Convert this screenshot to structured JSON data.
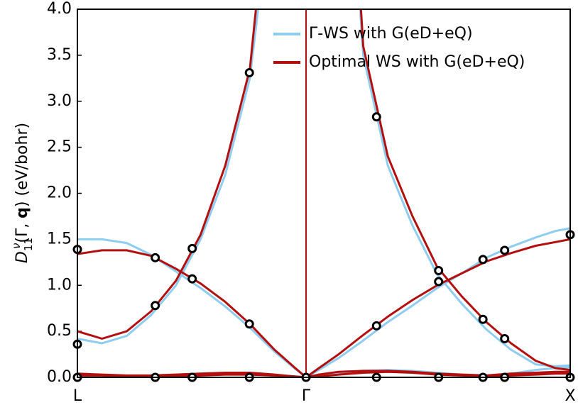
{
  "chart_data": {
    "type": "line",
    "y_label": {
      "symbol": "D",
      "subscript": "11",
      "superscript": "ν",
      "open": "(Γ, ",
      "bold": "q",
      "close": ") (eV/bohr)"
    },
    "x": [
      0,
      0.05,
      0.1,
      0.15,
      0.2,
      0.25,
      0.3,
      0.35,
      0.4,
      0.44,
      0.464,
      0.49,
      0.53,
      0.58,
      0.63,
      0.68,
      0.73,
      0.78,
      0.83,
      0.88,
      0.93,
      0.97,
      1.0
    ],
    "xlim": [
      0,
      1
    ],
    "xticks": [
      {
        "value": 0,
        "label": "L"
      },
      {
        "value": 0.464,
        "label": "Γ"
      },
      {
        "value": 1,
        "label": "X"
      }
    ],
    "ylim": [
      0,
      4
    ],
    "yticks": [
      {
        "value": 0,
        "label": "0.0"
      },
      0.5,
      {
        "value": 1,
        "label": "1.0"
      },
      1.5,
      {
        "value": 2,
        "label": "2.0"
      },
      2.5,
      {
        "value": 3,
        "label": "3.0"
      },
      3.5,
      {
        "value": 4,
        "label": "4.0"
      }
    ],
    "legend": "upper right",
    "series": [
      {
        "name": "Γ-WS with G(eD+eQ)",
        "color": "#8ecdf0",
        "branches": [
          [
            0.42,
            0.37,
            0.45,
            0.68,
            1.0,
            1.5,
            2.2,
            3.25,
            5.5,
            14,
            null,
            28,
            7.5,
            3.5,
            2.3,
            1.65,
            1.12,
            0.8,
            0.52,
            0.3,
            0.14,
            0.12,
            0.13
          ],
          [
            1.5,
            1.5,
            1.46,
            1.33,
            1.15,
            0.97,
            0.77,
            0.54,
            0.28,
            0.1,
            0,
            0.08,
            0.21,
            0.4,
            0.6,
            0.78,
            0.97,
            1.13,
            1.3,
            1.42,
            1.52,
            1.59,
            1.62
          ],
          [
            0.02,
            0.02,
            0.01,
            0.02,
            0.03,
            0.04,
            0.04,
            0.04,
            0.02,
            0.01,
            0,
            0.02,
            0.05,
            0.07,
            0.08,
            0.07,
            0.05,
            0.03,
            0.02,
            0.04,
            0.08,
            0.1,
            0.11
          ]
        ]
      },
      {
        "name": "Optimal WS with G(eD+eQ)",
        "color": "#b30f0f",
        "branches": [
          [
            0.5,
            0.42,
            0.5,
            0.72,
            1.05,
            1.55,
            2.3,
            3.35,
            6,
            15,
            null,
            30,
            8,
            3.6,
            2.4,
            1.75,
            1.2,
            0.88,
            0.6,
            0.37,
            0.18,
            0.1,
            0.08
          ],
          [
            1.34,
            1.38,
            1.38,
            1.32,
            1.18,
            1.02,
            0.82,
            0.58,
            0.3,
            0.11,
            0,
            0.1,
            0.25,
            0.46,
            0.66,
            0.84,
            1.0,
            1.13,
            1.26,
            1.35,
            1.43,
            1.47,
            1.5
          ],
          [
            0.04,
            0.03,
            0.02,
            0.02,
            0.03,
            0.04,
            0.05,
            0.05,
            0.03,
            0.01,
            0,
            0.03,
            0.06,
            0.07,
            0.07,
            0.06,
            0.04,
            0.03,
            0.02,
            0.04,
            0.05,
            0.06,
            0.06
          ],
          [
            0.02,
            0.02,
            0.01,
            0.01,
            0.01,
            0.02,
            0.03,
            0.03,
            0.02,
            0.01,
            0,
            0.01,
            0.03,
            0.05,
            0.06,
            0.05,
            0.03,
            0.02,
            0.01,
            0.02,
            0.03,
            0.04,
            0.04
          ]
        ]
      }
    ],
    "points": {
      "x": [
        0,
        0,
        0,
        0.158,
        0.158,
        0.158,
        0.233,
        0.233,
        0.233,
        0.349,
        0.349,
        0.349,
        0.464,
        0.607,
        0.607,
        0.607,
        0.733,
        0.733,
        0.733,
        0.823,
        0.823,
        0.823,
        0.867,
        0.867,
        0.867,
        1,
        1
      ],
      "values": [
        1.39,
        0.36,
        0,
        1.3,
        0.78,
        0,
        1.4,
        1.07,
        0,
        3.31,
        0.58,
        0,
        0,
        2.83,
        0.56,
        0,
        1.16,
        1.04,
        0,
        1.28,
        0.63,
        0,
        1.38,
        0.42,
        0,
        1.55,
        0
      ]
    }
  }
}
